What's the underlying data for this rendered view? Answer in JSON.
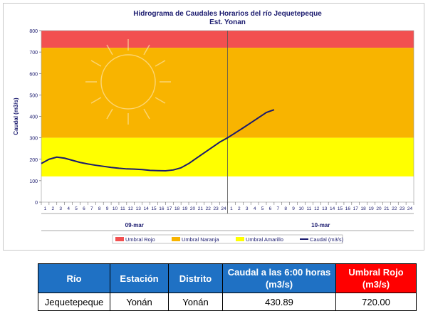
{
  "chart_data": {
    "type": "line",
    "title": "Hidrograma de Caudales Horarios del río Jequetepeque",
    "subtitle": "Est. Yonan",
    "ylabel": "Caudal (m3/s)",
    "xlabel": "",
    "ylim": [
      0,
      800
    ],
    "yticks": [
      0,
      100,
      200,
      300,
      400,
      500,
      600,
      700,
      800
    ],
    "hours": [
      "1",
      "2",
      "3",
      "4",
      "5",
      "6",
      "7",
      "8",
      "9",
      "10",
      "11",
      "12",
      "13",
      "14",
      "15",
      "16",
      "17",
      "18",
      "19",
      "20",
      "21",
      "22",
      "23",
      "24"
    ],
    "days": [
      "09-mar",
      "10-mar"
    ],
    "thresholds": [
      {
        "name": "Umbral Rojo",
        "from": 720,
        "to": 800,
        "color": "#f25050"
      },
      {
        "name": "Umbral Naranja",
        "from": 300,
        "to": 720,
        "color": "#f8b400"
      },
      {
        "name": "Umbral Amarillo",
        "from": 120,
        "to": 300,
        "color": "#ffff00"
      }
    ],
    "series": [
      {
        "name": "Caudal (m3/s)",
        "color": "#1a1a6e",
        "x": [
          0,
          1,
          2,
          3,
          4,
          5,
          6,
          7,
          8,
          9,
          10,
          11,
          12,
          13,
          14,
          15,
          16,
          17,
          18,
          19,
          20,
          21,
          22,
          23,
          24,
          25,
          26,
          27,
          28,
          29,
          30
        ],
        "values": [
          180,
          200,
          210,
          205,
          195,
          185,
          178,
          172,
          167,
          162,
          158,
          155,
          154,
          152,
          148,
          147,
          146,
          150,
          160,
          180,
          205,
          230,
          255,
          280,
          300,
          323,
          346,
          370,
          394,
          418,
          430.89
        ]
      }
    ],
    "legend": {
      "position": "bottom",
      "items": [
        {
          "label": "Umbral Rojo",
          "color": "#f25050"
        },
        {
          "label": "Umbral Naranja",
          "color": "#f8b400"
        },
        {
          "label": "Umbral Amarillo",
          "color": "#ffff00"
        },
        {
          "label": "Caudal (m3/s)",
          "color": "#1a1a6e"
        }
      ]
    }
  },
  "table": {
    "headers": [
      "Río",
      "Estación",
      "Distrito",
      "Caudal a las 6:00 horas (m3/s)",
      "Umbral Rojo (m3/s)"
    ],
    "header_colors": [
      "#1f71c4",
      "#1f71c4",
      "#1f71c4",
      "#1f71c4",
      "#ff0000"
    ],
    "row": [
      "Jequetepeque",
      "Yonán",
      "Yonán",
      "430.89",
      "720.00"
    ]
  }
}
